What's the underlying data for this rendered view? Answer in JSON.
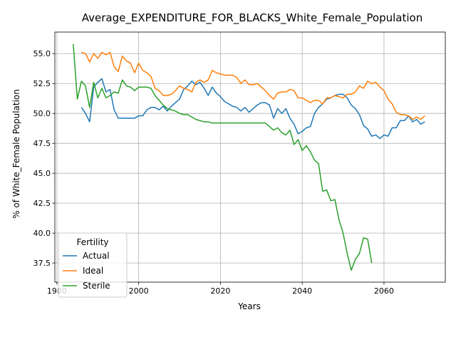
{
  "chart_data": {
    "type": "line",
    "title": "Average_EXPENDITURE_FOR_BLACKS_White_Female_Population",
    "xlabel": "Years",
    "ylabel": "% of White_Female Population",
    "xlim": [
      1979.5,
      2075
    ],
    "ylim": [
      35.9,
      56.8
    ],
    "xticks": [
      1980,
      2000,
      2020,
      2040,
      2060
    ],
    "yticks": [
      37.5,
      40.0,
      42.5,
      45.0,
      47.5,
      50.0,
      52.5,
      55.0
    ],
    "xtick_labels": [
      "1980",
      "2000",
      "2020",
      "2040",
      "2060"
    ],
    "ytick_labels": [
      "37.5",
      "40.0",
      "42.5",
      "45.0",
      "47.5",
      "50.0",
      "52.5",
      "55.0"
    ],
    "grid": true,
    "legend": {
      "title": "Fertility",
      "placement": "lower-left"
    },
    "series": [
      {
        "name": "Actual",
        "color": "#1f77b4",
        "x": [
          1986,
          1987,
          1988,
          1989,
          1990,
          1991,
          1992,
          1993,
          1994,
          1995,
          1996,
          1997,
          1998,
          1999,
          2000,
          2001,
          2002,
          2003,
          2004,
          2005,
          2006,
          2007,
          2008,
          2009,
          2010,
          2011,
          2012,
          2013,
          2014,
          2015,
          2016,
          2017,
          2018,
          2019,
          2020,
          2021,
          2022,
          2023,
          2024,
          2025,
          2026,
          2027,
          2028,
          2029,
          2030,
          2031,
          2032,
          2033,
          2034,
          2035,
          2036,
          2037,
          2038,
          2039,
          2040,
          2041,
          2042,
          2043,
          2044,
          2045,
          2046,
          2047,
          2048,
          2049,
          2050,
          2051,
          2052,
          2053,
          2054,
          2055,
          2056,
          2057,
          2058,
          2059,
          2060,
          2061,
          2062,
          2063,
          2064,
          2065,
          2066,
          2067,
          2068,
          2069,
          2070
        ],
        "values": [
          50.5,
          50.0,
          49.3,
          52.2,
          52.6,
          52.9,
          51.8,
          52.0,
          50.3,
          49.6,
          49.6,
          49.6,
          49.6,
          49.6,
          49.8,
          49.8,
          50.3,
          50.5,
          50.5,
          50.3,
          50.6,
          50.2,
          50.6,
          50.9,
          51.2,
          52.0,
          52.3,
          52.7,
          52.4,
          52.6,
          52.1,
          51.5,
          52.2,
          51.7,
          51.4,
          51.0,
          50.8,
          50.6,
          50.5,
          50.2,
          50.5,
          50.1,
          50.4,
          50.7,
          50.9,
          50.9,
          50.7,
          49.6,
          50.4,
          50.0,
          50.4,
          49.6,
          49.1,
          48.3,
          48.5,
          48.8,
          48.9,
          50.0,
          50.5,
          50.8,
          51.2,
          51.3,
          51.5,
          51.6,
          51.6,
          51.3,
          50.7,
          50.4,
          49.9,
          49.0,
          48.7,
          48.1,
          48.2,
          47.9,
          48.2,
          48.1,
          48.8,
          48.8,
          49.4,
          49.4,
          49.8,
          49.3,
          49.5,
          49.1,
          49.3
        ]
      },
      {
        "name": "Ideal",
        "color": "#ff7f0e",
        "x": [
          1986,
          1987,
          1988,
          1989,
          1990,
          1991,
          1992,
          1993,
          1994,
          1995,
          1996,
          1997,
          1998,
          1999,
          2000,
          2001,
          2002,
          2003,
          2004,
          2005,
          2006,
          2007,
          2008,
          2009,
          2010,
          2011,
          2012,
          2013,
          2014,
          2015,
          2016,
          2017,
          2018,
          2019,
          2020,
          2021,
          2022,
          2023,
          2024,
          2025,
          2026,
          2027,
          2028,
          2029,
          2030,
          2031,
          2032,
          2033,
          2034,
          2035,
          2036,
          2037,
          2038,
          2039,
          2040,
          2041,
          2042,
          2043,
          2044,
          2045,
          2046,
          2047,
          2048,
          2049,
          2050,
          2051,
          2052,
          2053,
          2054,
          2055,
          2056,
          2057,
          2058,
          2059,
          2060,
          2061,
          2062,
          2063,
          2064,
          2065,
          2066,
          2067,
          2068,
          2069,
          2070
        ],
        "values": [
          55.1,
          55.0,
          54.3,
          55.0,
          54.6,
          55.1,
          54.9,
          55.1,
          53.9,
          53.5,
          54.8,
          54.4,
          54.2,
          53.4,
          54.2,
          53.6,
          53.4,
          53.1,
          52.1,
          51.9,
          51.5,
          51.5,
          51.6,
          51.9,
          52.3,
          52.1,
          52.0,
          51.8,
          52.6,
          52.8,
          52.6,
          52.8,
          53.6,
          53.4,
          53.3,
          53.2,
          53.2,
          53.2,
          53.0,
          52.5,
          52.8,
          52.4,
          52.4,
          52.5,
          52.2,
          51.9,
          51.5,
          51.2,
          51.7,
          51.8,
          51.8,
          52.0,
          51.9,
          51.3,
          51.3,
          51.1,
          50.9,
          51.1,
          51.1,
          50.8,
          51.3,
          51.3,
          51.5,
          51.4,
          51.3,
          51.6,
          51.6,
          51.8,
          52.3,
          52.1,
          52.7,
          52.5,
          52.6,
          52.2,
          51.9,
          51.2,
          50.8,
          50.1,
          49.9,
          49.9,
          49.8,
          49.5,
          49.7,
          49.5,
          49.8
        ]
      },
      {
        "name": "Sterile",
        "color": "#2ca02c",
        "x": [
          1984,
          1985,
          1986,
          1987,
          1988,
          1989,
          1990,
          1991,
          1992,
          1993,
          1994,
          1995,
          1996,
          1997,
          1998,
          1999,
          2000,
          2001,
          2002,
          2003,
          2004,
          2005,
          2006,
          2007,
          2008,
          2009,
          2010,
          2011,
          2012,
          2013,
          2014,
          2015,
          2016,
          2017,
          2018,
          2019,
          2020,
          2021,
          2022,
          2023,
          2024,
          2025,
          2026,
          2027,
          2028,
          2029,
          2030,
          2031,
          2032,
          2033,
          2034,
          2035,
          2036,
          2037,
          2038,
          2039,
          2040,
          2041,
          2042,
          2043,
          2044,
          2045,
          2046,
          2047,
          2048,
          2049,
          2050,
          2051,
          2052,
          2053,
          2054,
          2055,
          2056,
          2057
        ],
        "values": [
          55.8,
          51.2,
          52.7,
          52.3,
          50.5,
          52.6,
          51.3,
          52.1,
          51.3,
          51.5,
          51.8,
          51.7,
          52.8,
          52.3,
          52.2,
          51.9,
          52.2,
          52.2,
          52.2,
          52.1,
          51.5,
          51.1,
          50.7,
          50.4,
          50.3,
          50.2,
          50.0,
          49.9,
          49.9,
          49.7,
          49.5,
          49.4,
          49.3,
          49.3,
          49.2,
          49.2,
          49.2,
          49.2,
          49.2,
          49.2,
          49.2,
          49.2,
          49.2,
          49.2,
          49.2,
          49.2,
          49.2,
          49.2,
          48.9,
          48.6,
          48.8,
          48.4,
          48.2,
          48.6,
          47.4,
          47.8,
          46.9,
          47.3,
          46.8,
          46.1,
          45.8,
          43.5,
          43.6,
          42.7,
          42.8,
          41.1,
          40.0,
          38.3,
          36.9,
          37.8,
          38.3,
          39.6,
          39.5,
          37.5
        ]
      }
    ]
  }
}
